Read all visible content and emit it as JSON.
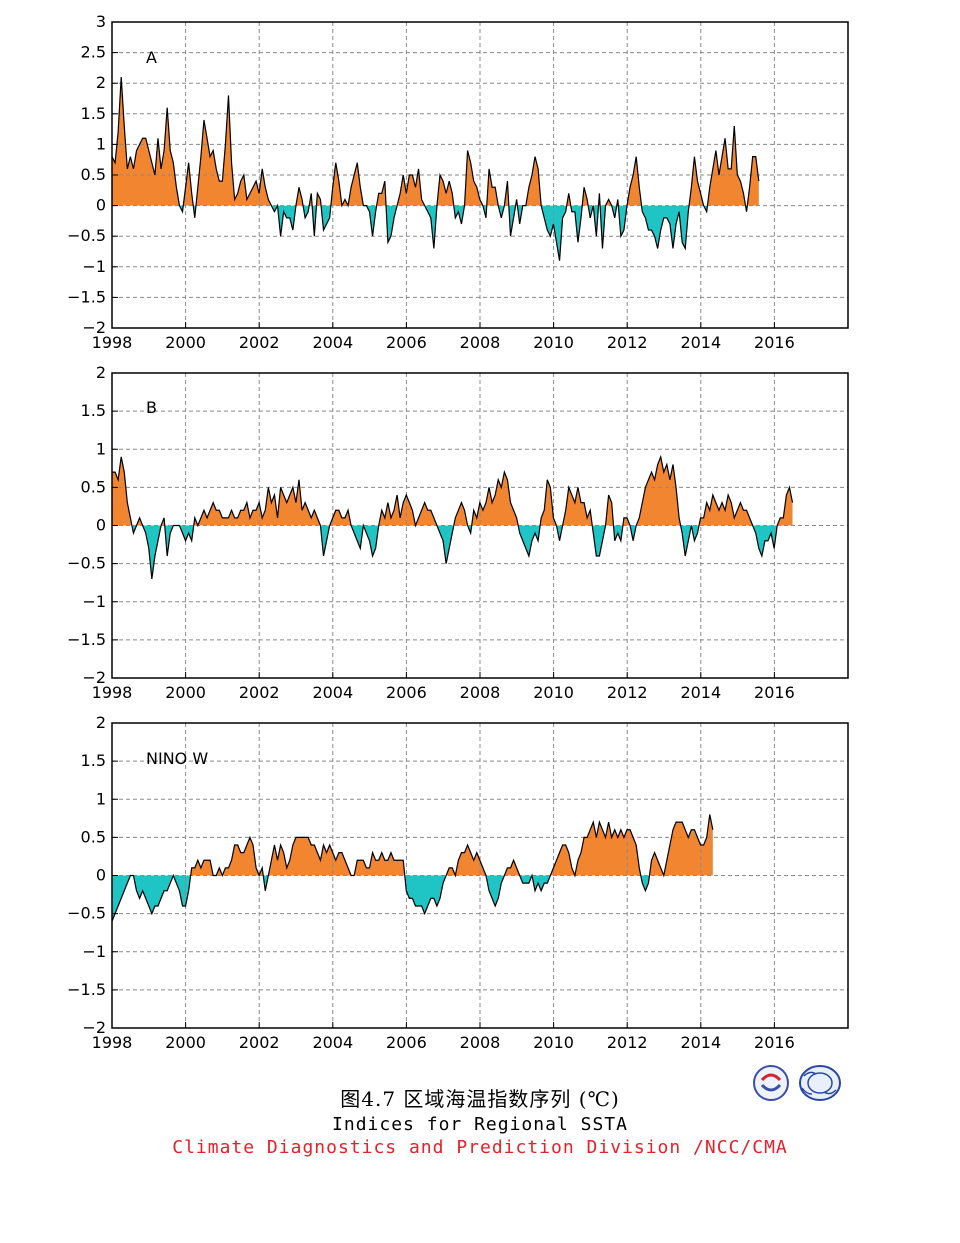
{
  "colors": {
    "positive": "#f28630",
    "negative": "#1fc4c4",
    "line": "#000000",
    "grid": "#8a8a8a",
    "caption_division": "#e8202a"
  },
  "caption": {
    "chinese": "图4.7  区域海温指数序列 (℃)",
    "english": "Indices for Regional SSTA",
    "division": "Climate Diagnostics and Prediction Division /NCC/CMA"
  },
  "logos": {
    "left": "BCC",
    "right": "NCC"
  },
  "chart_data": [
    {
      "type": "area",
      "panel_label": "A",
      "x_start": 1998.0,
      "x_step": 0.0833,
      "xlim": [
        1998,
        2018
      ],
      "xticks": [
        "1998",
        "2000",
        "2002",
        "2004",
        "2006",
        "2008",
        "2010",
        "2012",
        "2014",
        "2016"
      ],
      "ylim": [
        -2,
        3
      ],
      "yticks": [
        "−2",
        "−1.5",
        "−1",
        "−0.5",
        "0",
        "0.5",
        "1",
        "1.5",
        "2",
        "2.5",
        "3"
      ],
      "grid": true,
      "values": [
        0.8,
        0.7,
        1.2,
        2.1,
        1.3,
        0.6,
        0.8,
        0.6,
        0.9,
        1.0,
        1.1,
        1.1,
        0.9,
        0.7,
        0.5,
        1.1,
        0.6,
        0.9,
        1.6,
        0.9,
        0.7,
        0.3,
        0.0,
        -0.1,
        0.3,
        0.7,
        0.2,
        -0.2,
        0.3,
        0.8,
        1.4,
        1.1,
        0.8,
        0.9,
        0.6,
        0.4,
        0.4,
        1.0,
        1.8,
        0.7,
        0.1,
        0.2,
        0.4,
        0.5,
        0.1,
        0.2,
        0.3,
        0.4,
        0.2,
        0.6,
        0.3,
        0.1,
        0.0,
        -0.1,
        0.0,
        -0.5,
        -0.1,
        -0.2,
        -0.2,
        -0.4,
        0.0,
        0.3,
        0.1,
        -0.2,
        -0.1,
        0.2,
        -0.5,
        0.2,
        0.1,
        -0.4,
        -0.3,
        -0.2,
        0.3,
        0.7,
        0.4,
        0.0,
        0.1,
        0.0,
        0.3,
        0.5,
        0.7,
        0.3,
        0.0,
        0.0,
        -0.1,
        -0.5,
        -0.1,
        0.2,
        0.2,
        0.4,
        -0.6,
        -0.5,
        -0.2,
        0.0,
        0.2,
        0.5,
        0.2,
        0.5,
        0.5,
        0.3,
        0.6,
        0.1,
        0.0,
        -0.1,
        -0.2,
        -0.7,
        0.0,
        0.5,
        0.4,
        0.2,
        0.4,
        0.2,
        -0.2,
        -0.1,
        -0.3,
        0.0,
        0.9,
        0.7,
        0.4,
        0.3,
        0.1,
        0.0,
        -0.2,
        0.6,
        0.3,
        0.3,
        0.0,
        -0.2,
        0.0,
        0.4,
        -0.5,
        -0.2,
        0.1,
        -0.3,
        0.0,
        0.0,
        0.3,
        0.5,
        0.8,
        0.6,
        0.0,
        -0.2,
        -0.4,
        -0.5,
        -0.3,
        -0.6,
        -0.9,
        -0.2,
        -0.1,
        0.2,
        -0.1,
        -0.1,
        -0.6,
        -0.2,
        0.3,
        0.1,
        -0.2,
        0.0,
        -0.5,
        0.2,
        -0.7,
        0.0,
        0.1,
        0.0,
        -0.2,
        0.1,
        -0.5,
        -0.4,
        0.0,
        0.3,
        0.5,
        0.8,
        0.3,
        -0.1,
        -0.2,
        -0.4,
        -0.4,
        -0.5,
        -0.7,
        -0.4,
        -0.2,
        -0.2,
        -0.3,
        -0.7,
        -0.3,
        -0.1,
        -0.6,
        -0.7,
        -0.1,
        0.3,
        0.8,
        0.4,
        0.2,
        0.0,
        -0.1,
        0.3,
        0.6,
        0.9,
        0.5,
        0.8,
        1.1,
        0.6,
        0.6,
        1.3,
        0.5,
        0.4,
        0.2,
        -0.1,
        0.3,
        0.8,
        0.8,
        0.4
      ]
    },
    {
      "type": "area",
      "panel_label": "B",
      "x_start": 1998.0,
      "x_step": 0.0833,
      "xlim": [
        1998,
        2018
      ],
      "xticks": [
        "1998",
        "2000",
        "2002",
        "2004",
        "2006",
        "2008",
        "2010",
        "2012",
        "2014",
        "2016"
      ],
      "ylim": [
        -2,
        2
      ],
      "yticks": [
        "−2",
        "−1.5",
        "−1",
        "−0.5",
        "0",
        "0.5",
        "1",
        "1.5",
        "2"
      ],
      "grid": true,
      "values": [
        0.7,
        0.7,
        0.6,
        0.9,
        0.7,
        0.3,
        0.1,
        -0.1,
        0.0,
        0.1,
        0.0,
        -0.1,
        -0.3,
        -0.7,
        -0.4,
        -0.2,
        0.0,
        0.1,
        -0.4,
        -0.1,
        0.0,
        0.0,
        0.0,
        -0.1,
        -0.2,
        -0.1,
        -0.2,
        0.1,
        0.0,
        0.1,
        0.2,
        0.1,
        0.2,
        0.3,
        0.2,
        0.2,
        0.1,
        0.1,
        0.1,
        0.2,
        0.1,
        0.1,
        0.2,
        0.2,
        0.3,
        0.1,
        0.2,
        0.2,
        0.3,
        0.1,
        0.2,
        0.5,
        0.3,
        0.4,
        0.1,
        0.5,
        0.4,
        0.3,
        0.4,
        0.5,
        0.3,
        0.6,
        0.2,
        0.3,
        0.2,
        0.1,
        0.2,
        0.1,
        0.0,
        -0.4,
        -0.2,
        0.0,
        0.1,
        0.2,
        0.2,
        0.1,
        0.1,
        0.2,
        0.0,
        -0.1,
        -0.2,
        -0.3,
        0.0,
        -0.1,
        -0.2,
        -0.4,
        -0.3,
        0.0,
        0.2,
        0.1,
        0.3,
        0.1,
        0.2,
        0.4,
        0.1,
        0.3,
        0.4,
        0.3,
        0.2,
        0.0,
        0.1,
        0.2,
        0.3,
        0.2,
        0.2,
        0.1,
        0.0,
        -0.1,
        -0.2,
        -0.5,
        -0.3,
        -0.1,
        0.1,
        0.2,
        0.3,
        0.2,
        0.0,
        -0.1,
        0.2,
        0.1,
        0.3,
        0.2,
        0.3,
        0.5,
        0.3,
        0.4,
        0.6,
        0.5,
        0.7,
        0.6,
        0.3,
        0.2,
        0.1,
        -0.1,
        -0.2,
        -0.3,
        -0.4,
        -0.2,
        -0.1,
        -0.2,
        0.1,
        0.2,
        0.6,
        0.5,
        0.1,
        0.0,
        -0.2,
        0.0,
        0.2,
        0.5,
        0.4,
        0.3,
        0.5,
        0.3,
        0.3,
        0.1,
        0.2,
        -0.1,
        -0.4,
        -0.4,
        -0.2,
        0.0,
        0.4,
        0.3,
        -0.2,
        -0.1,
        -0.2,
        0.1,
        0.1,
        0.0,
        -0.2,
        0.0,
        0.1,
        0.3,
        0.5,
        0.6,
        0.7,
        0.6,
        0.8,
        0.9,
        0.7,
        0.8,
        0.6,
        0.8,
        0.5,
        0.1,
        -0.1,
        -0.4,
        -0.2,
        0.0,
        -0.2,
        -0.1,
        0.1,
        0.1,
        0.3,
        0.2,
        0.4,
        0.3,
        0.2,
        0.3,
        0.2,
        0.4,
        0.3,
        0.1,
        0.2,
        0.3,
        0.2,
        0.2,
        0.1,
        0.0,
        -0.1,
        -0.3,
        -0.4,
        -0.2,
        -0.2,
        -0.1,
        -0.3,
        0.0,
        0.1,
        0.1,
        0.4,
        0.5,
        0.3
      ]
    },
    {
      "type": "area",
      "panel_label": "NINO  W",
      "x_start": 1998.0,
      "x_step": 0.0833,
      "xlim": [
        1998,
        2018
      ],
      "xticks": [
        "1998",
        "2000",
        "2002",
        "2004",
        "2006",
        "2008",
        "2010",
        "2012",
        "2014",
        "2016"
      ],
      "ylim": [
        -2,
        2
      ],
      "yticks": [
        "−2",
        "−1.5",
        "−1",
        "−0.5",
        "0",
        "0.5",
        "1",
        "1.5",
        "2"
      ],
      "grid": true,
      "values": [
        -0.6,
        -0.5,
        -0.4,
        -0.3,
        -0.2,
        -0.1,
        0.0,
        0.0,
        -0.2,
        -0.3,
        -0.2,
        -0.3,
        -0.4,
        -0.5,
        -0.4,
        -0.4,
        -0.3,
        -0.2,
        -0.2,
        -0.1,
        0.0,
        -0.1,
        -0.2,
        -0.4,
        -0.4,
        -0.2,
        0.1,
        0.1,
        0.2,
        0.1,
        0.2,
        0.2,
        0.2,
        0.0,
        0.0,
        0.1,
        0.0,
        0.1,
        0.1,
        0.2,
        0.4,
        0.4,
        0.3,
        0.3,
        0.4,
        0.5,
        0.4,
        0.1,
        0.0,
        0.1,
        -0.2,
        0.0,
        0.2,
        0.4,
        0.2,
        0.4,
        0.3,
        0.1,
        0.2,
        0.4,
        0.5,
        0.5,
        0.5,
        0.5,
        0.5,
        0.4,
        0.4,
        0.3,
        0.2,
        0.4,
        0.3,
        0.4,
        0.3,
        0.2,
        0.3,
        0.3,
        0.2,
        0.1,
        0.0,
        0.0,
        0.2,
        0.2,
        0.2,
        0.1,
        0.1,
        0.3,
        0.2,
        0.2,
        0.3,
        0.2,
        0.2,
        0.3,
        0.2,
        0.2,
        0.2,
        0.2,
        -0.2,
        -0.3,
        -0.3,
        -0.4,
        -0.4,
        -0.4,
        -0.5,
        -0.4,
        -0.3,
        -0.3,
        -0.4,
        -0.3,
        -0.1,
        0.0,
        0.1,
        0.1,
        0.0,
        0.2,
        0.3,
        0.3,
        0.4,
        0.3,
        0.2,
        0.3,
        0.2,
        0.1,
        0.0,
        -0.2,
        -0.3,
        -0.4,
        -0.3,
        -0.1,
        0.0,
        0.1,
        0.1,
        0.2,
        0.1,
        0.0,
        -0.1,
        -0.1,
        -0.1,
        0.0,
        -0.2,
        -0.1,
        -0.2,
        -0.1,
        -0.1,
        0.0,
        0.1,
        0.2,
        0.3,
        0.4,
        0.4,
        0.3,
        0.1,
        0.0,
        0.2,
        0.3,
        0.5,
        0.5,
        0.6,
        0.7,
        0.5,
        0.7,
        0.6,
        0.5,
        0.7,
        0.5,
        0.6,
        0.5,
        0.6,
        0.5,
        0.6,
        0.6,
        0.5,
        0.4,
        0.1,
        -0.1,
        -0.2,
        -0.1,
        0.2,
        0.3,
        0.2,
        0.1,
        0.0,
        0.2,
        0.4,
        0.6,
        0.7,
        0.7,
        0.7,
        0.6,
        0.5,
        0.6,
        0.6,
        0.5,
        0.4,
        0.4,
        0.5,
        0.8,
        0.6
      ]
    }
  ]
}
